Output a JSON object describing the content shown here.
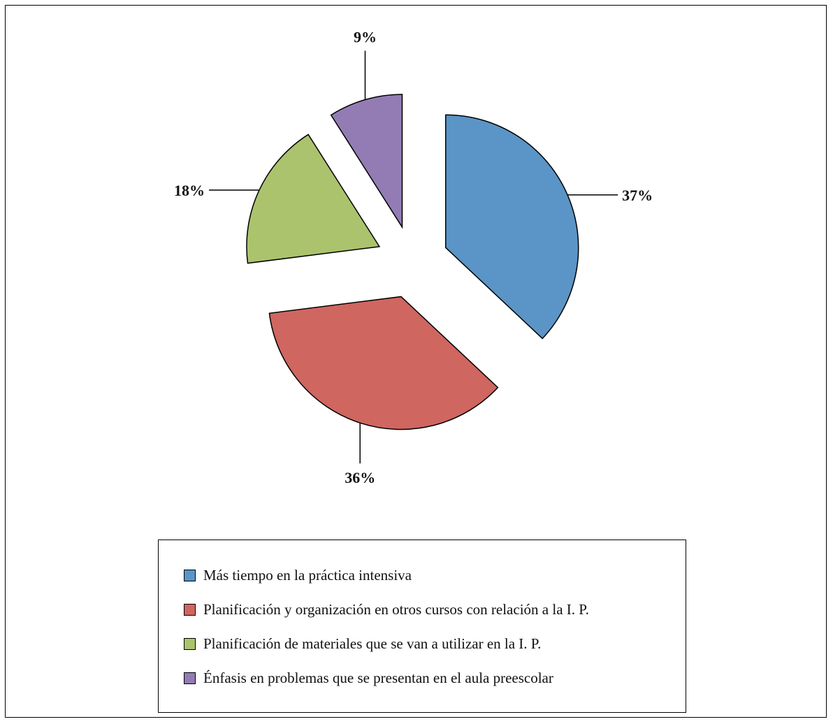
{
  "chart_data": {
    "type": "pie",
    "exploded": true,
    "legend_position": "bottom",
    "series": [
      {
        "label": "Más tiempo en la práctica intensiva",
        "value": 37,
        "display": "37%",
        "color": "#5b94c6"
      },
      {
        "label": "Planificación y organización en otros cursos con relación a la I. P.",
        "value": 36,
        "display": "36%",
        "color": "#cf6660"
      },
      {
        "label": "Planificación de materiales que se van a utilizar en la I. P.",
        "value": 18,
        "display": "18%",
        "color": "#abc36d"
      },
      {
        "label": "Énfasis en problemas que se presentan en el aula preescolar",
        "value": 9,
        "display": "9%",
        "color": "#937cb4"
      }
    ]
  }
}
